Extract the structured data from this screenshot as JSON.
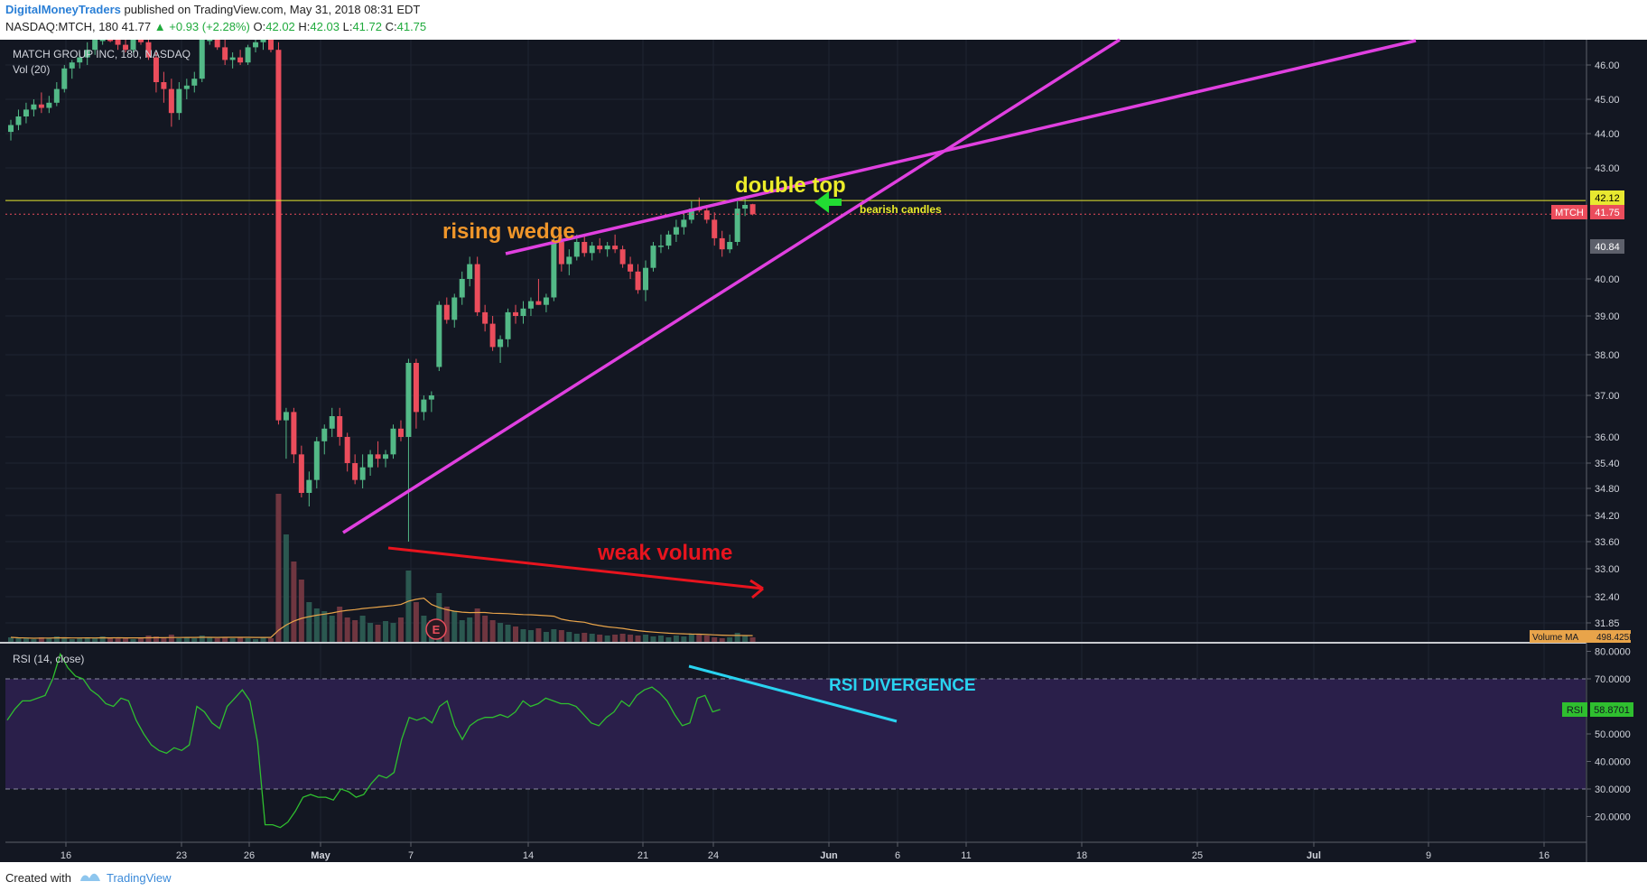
{
  "header": {
    "author": "DigitalMoneyTraders",
    "published": " published on TradingView.com, May 31, 2018 08:31 EDT",
    "symbol_line": "NASDAQ:MTCH, 180",
    "last": "41.77",
    "change": "▲ +0.93 (+2.28%)",
    "ohlc_o_label": "O:",
    "ohlc_o": "42.02",
    "ohlc_h_label": "H:",
    "ohlc_h": "42.03",
    "ohlc_l_label": "L:",
    "ohlc_l": "41.72",
    "ohlc_c_label": "C:",
    "ohlc_c": "41.75"
  },
  "chart_title": "MATCH GROUP INC, 180, NASDAQ",
  "volume_label": "Vol (20)",
  "rsi_label": "RSI (14, close)",
  "annotations": {
    "double_top": "double top",
    "bearish": "bearish candles",
    "rising_wedge": "rising wedge",
    "weak_volume": "weak volume",
    "rsi_divergence": "RSI DIVERGENCE",
    "earnings": "E"
  },
  "price_tags": {
    "level": "42.12",
    "symbol": "MTCH",
    "last": "41.75",
    "grey": "40.84",
    "volume_ma_label": "Volume MA",
    "volume_ma_value": "498.425K",
    "rsi_label": "RSI",
    "rsi_value": "58.8701"
  },
  "footer": {
    "created": "Created with",
    "brand": "TradingView"
  },
  "colors": {
    "background": "#131722",
    "up": "#53b987",
    "down": "#eb4d5c",
    "wedge": "#e040e0",
    "level": "#e8e830",
    "rsi_line": "#2fbf2f",
    "rsi_band": "#2a1f4a",
    "divergence": "#29d3f0",
    "weak_volume": "#e8141e"
  },
  "chart_data": [
    {
      "type": "candlestick",
      "title": "MATCH GROUP INC, 180, NASDAQ",
      "y_ticks": [
        46.0,
        45.0,
        44.0,
        43.0,
        40.0,
        39.0,
        38.0,
        37.0,
        36.0,
        35.4,
        34.8,
        34.2,
        33.6,
        33.0,
        32.4,
        31.85
      ],
      "y_tick_labels": [
        "46.00",
        "45.00",
        "44.00",
        "43.00",
        "40.00",
        "39.00",
        "38.00",
        "37.00",
        "36.00",
        "35.40",
        "34.80",
        "34.20",
        "33.60",
        "33.00",
        "32.40",
        "31.85"
      ],
      "x_tick_labels": [
        "16",
        "23",
        "26",
        "May",
        "7",
        "14",
        "21",
        "24",
        "Jun",
        "6",
        "11",
        "18",
        "25",
        "Jul",
        "9",
        "16"
      ],
      "ylim": [
        31.6,
        47.0
      ],
      "horizontal_level": 42.12,
      "last_price": 41.75,
      "candles_ohlc": [
        [
          44.05,
          44.4,
          43.8,
          44.25
        ],
        [
          44.25,
          44.7,
          44.1,
          44.5
        ],
        [
          44.5,
          44.9,
          44.3,
          44.7
        ],
        [
          44.7,
          45.0,
          44.5,
          44.85
        ],
        [
          44.85,
          45.2,
          44.6,
          44.75
        ],
        [
          44.75,
          45.1,
          44.6,
          44.9
        ],
        [
          44.9,
          45.5,
          44.8,
          45.3
        ],
        [
          45.3,
          46.0,
          45.2,
          45.9
        ],
        [
          45.9,
          46.2,
          45.6,
          46.1
        ],
        [
          46.1,
          46.5,
          45.9,
          46.3
        ],
        [
          46.3,
          46.9,
          46.0,
          46.6
        ],
        [
          46.6,
          47.2,
          46.4,
          47.0
        ],
        [
          47.0,
          47.4,
          46.8,
          47.2
        ],
        [
          47.2,
          47.5,
          46.9,
          47.0
        ],
        [
          47.0,
          47.3,
          46.6,
          46.8
        ],
        [
          46.8,
          47.2,
          46.5,
          46.6
        ],
        [
          46.6,
          47.4,
          46.5,
          47.2
        ],
        [
          47.2,
          47.5,
          46.8,
          46.9
        ],
        [
          46.9,
          47.1,
          46.2,
          46.3
        ],
        [
          46.3,
          46.5,
          45.2,
          45.5
        ],
        [
          45.5,
          45.8,
          44.9,
          45.3
        ],
        [
          45.3,
          45.6,
          44.2,
          44.6
        ],
        [
          44.6,
          45.5,
          44.4,
          45.3
        ],
        [
          45.3,
          45.6,
          45.0,
          45.4
        ],
        [
          45.4,
          45.8,
          45.2,
          45.6
        ],
        [
          45.6,
          47.3,
          45.5,
          47.1
        ],
        [
          47.1,
          47.5,
          46.8,
          47.2
        ],
        [
          47.2,
          47.5,
          46.6,
          46.7
        ],
        [
          46.7,
          47.0,
          46.0,
          46.2
        ],
        [
          46.2,
          46.5,
          45.9,
          46.3
        ],
        [
          46.3,
          46.6,
          46.0,
          46.1
        ],
        [
          46.1,
          46.8,
          46.0,
          46.7
        ],
        [
          46.7,
          47.2,
          46.5,
          46.9
        ],
        [
          46.9,
          47.2,
          46.6,
          47.0
        ],
        [
          47.0,
          47.3,
          46.5,
          46.6
        ],
        [
          46.6,
          46.9,
          36.3,
          36.4
        ],
        [
          36.4,
          36.7,
          35.5,
          36.6
        ],
        [
          36.6,
          36.7,
          35.4,
          35.6
        ],
        [
          35.6,
          35.8,
          34.6,
          34.7
        ],
        [
          34.7,
          35.2,
          34.4,
          35.0
        ],
        [
          35.0,
          36.0,
          34.8,
          35.9
        ],
        [
          35.9,
          36.3,
          35.6,
          36.2
        ],
        [
          36.2,
          36.7,
          36.0,
          36.5
        ],
        [
          36.5,
          36.7,
          35.8,
          36.0
        ],
        [
          36.0,
          36.1,
          35.2,
          35.4
        ],
        [
          35.4,
          35.6,
          34.9,
          35.0
        ],
        [
          35.0,
          35.6,
          34.8,
          35.3
        ],
        [
          35.3,
          35.7,
          35.1,
          35.6
        ],
        [
          35.6,
          35.9,
          35.3,
          35.5
        ],
        [
          35.5,
          35.7,
          35.3,
          35.6
        ],
        [
          35.6,
          36.3,
          35.5,
          36.2
        ],
        [
          36.2,
          36.4,
          35.9,
          36.0
        ],
        [
          36.0,
          37.9,
          33.6,
          37.8
        ],
        [
          37.8,
          37.9,
          36.2,
          36.6
        ],
        [
          36.6,
          37.0,
          36.4,
          36.9
        ],
        [
          36.9,
          37.1,
          36.6,
          37.0
        ],
        [
          37.7,
          39.4,
          37.6,
          39.3
        ],
        [
          39.3,
          39.5,
          38.8,
          38.9
        ],
        [
          38.9,
          39.6,
          38.7,
          39.5
        ],
        [
          39.5,
          40.2,
          39.3,
          40.0
        ],
        [
          40.0,
          40.6,
          39.8,
          40.4
        ],
        [
          40.4,
          40.6,
          39.0,
          39.1
        ],
        [
          39.1,
          39.3,
          38.6,
          38.8
        ],
        [
          38.8,
          39.0,
          38.1,
          38.2
        ],
        [
          38.2,
          38.5,
          37.8,
          38.4
        ],
        [
          38.4,
          39.2,
          38.2,
          39.1
        ],
        [
          39.1,
          39.3,
          38.8,
          39.0
        ],
        [
          39.0,
          39.4,
          38.8,
          39.2
        ],
        [
          39.2,
          39.5,
          39.0,
          39.4
        ],
        [
          39.4,
          40.0,
          39.3,
          39.3
        ],
        [
          39.3,
          39.6,
          39.1,
          39.5
        ],
        [
          39.5,
          41.2,
          39.4,
          41.0
        ],
        [
          41.0,
          41.2,
          40.2,
          40.4
        ],
        [
          40.4,
          40.8,
          40.1,
          40.6
        ],
        [
          40.6,
          41.2,
          40.5,
          41.0
        ],
        [
          41.0,
          41.2,
          40.6,
          40.7
        ],
        [
          40.7,
          41.0,
          40.5,
          40.9
        ],
        [
          40.9,
          41.1,
          40.7,
          40.8
        ],
        [
          40.8,
          41.0,
          40.6,
          40.9
        ],
        [
          40.9,
          41.2,
          40.7,
          40.8
        ],
        [
          40.8,
          40.9,
          40.3,
          40.4
        ],
        [
          40.4,
          40.6,
          40.0,
          40.2
        ],
        [
          40.2,
          40.4,
          39.6,
          39.7
        ],
        [
          39.7,
          40.5,
          39.4,
          40.3
        ],
        [
          40.3,
          41.0,
          40.2,
          40.9
        ],
        [
          40.9,
          41.2,
          40.7,
          40.9
        ],
        [
          40.9,
          41.3,
          40.8,
          41.2
        ],
        [
          41.2,
          41.6,
          41.0,
          41.4
        ],
        [
          41.4,
          41.8,
          41.2,
          41.6
        ],
        [
          41.6,
          42.1,
          41.5,
          41.9
        ],
        [
          41.9,
          42.2,
          41.8,
          41.85
        ],
        [
          41.85,
          42.0,
          41.5,
          41.6
        ],
        [
          41.6,
          41.8,
          40.9,
          41.1
        ],
        [
          41.1,
          41.3,
          40.6,
          40.8
        ],
        [
          40.8,
          41.2,
          40.7,
          41.0
        ],
        [
          41.0,
          42.1,
          40.9,
          41.9
        ],
        [
          41.9,
          42.2,
          41.7,
          42.0
        ],
        [
          42.02,
          42.03,
          41.72,
          41.75
        ]
      ],
      "volume_ma": 498425
    },
    {
      "type": "line",
      "title": "RSI (14, close)",
      "y_ticks": [
        80,
        70,
        50,
        40,
        30,
        20
      ],
      "y_tick_labels": [
        "80.0000",
        "70.0000",
        "50.0000",
        "40.0000",
        "30.0000",
        "20.0000"
      ],
      "ylim": [
        15,
        82
      ],
      "band": [
        30,
        70
      ],
      "last_value": 58.8701,
      "values": [
        55,
        59,
        62,
        62,
        63,
        64,
        70,
        79,
        74,
        71,
        70,
        66,
        64,
        61,
        60,
        63,
        62,
        55,
        50,
        46,
        44,
        43,
        45,
        44,
        46,
        60,
        58,
        54,
        52,
        60,
        63,
        66,
        62,
        47,
        17,
        17,
        16,
        18,
        22,
        27,
        28,
        27,
        27,
        26,
        30,
        29,
        27,
        28,
        32,
        35,
        34,
        36,
        48,
        56,
        55,
        56,
        54,
        60,
        62,
        53,
        48,
        53,
        55,
        56,
        56,
        57,
        56,
        58,
        62,
        60,
        61,
        63,
        62,
        61,
        61,
        60,
        57,
        54,
        53,
        56,
        58,
        62,
        60,
        64,
        66,
        67,
        65,
        62,
        57,
        53,
        54,
        63,
        64,
        58,
        58.87
      ]
    }
  ]
}
